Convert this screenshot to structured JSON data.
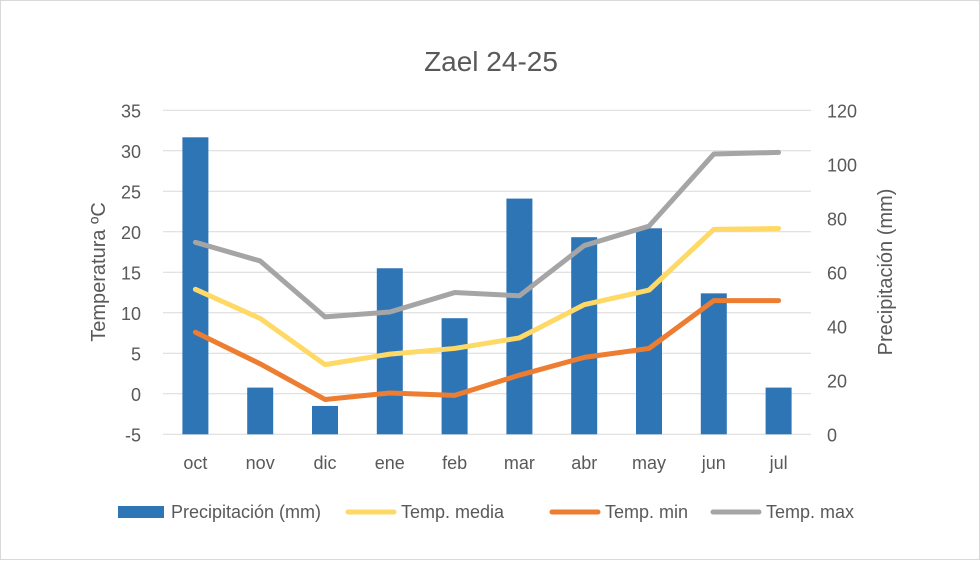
{
  "chart_data": {
    "type": "bar+line",
    "title": "Zael 24-25",
    "categories": [
      "oct",
      "nov",
      "dic",
      "ene",
      "feb",
      "mar",
      "abr",
      "may",
      "jun",
      "jul"
    ],
    "y_left": {
      "label": "Temperatura ºC",
      "range": [
        -5,
        35
      ],
      "ticks": [
        -5,
        0,
        5,
        10,
        15,
        20,
        25,
        30,
        35
      ]
    },
    "y_right": {
      "label": "Precipitación (mm)",
      "range": [
        0,
        120
      ],
      "ticks": [
        0,
        20,
        40,
        60,
        80,
        100,
        120
      ]
    },
    "grid": true,
    "legend_position": "bottom",
    "series": [
      {
        "name": "Precipitación (mm)",
        "type": "bar",
        "axis": "right",
        "color": "#2E75B6",
        "values": [
          110,
          17.3,
          10.5,
          61.5,
          43,
          87.3,
          73,
          76.3,
          52.2,
          17.3
        ]
      },
      {
        "name": "Temp. media",
        "type": "line",
        "axis": "left",
        "color": "#FFD966",
        "values": [
          12.9,
          9.3,
          3.6,
          4.9,
          5.6,
          6.9,
          11.0,
          12.8,
          20.3,
          20.4
        ]
      },
      {
        "name": "Temp. min",
        "type": "line",
        "axis": "left",
        "color": "#ED7D31",
        "values": [
          7.6,
          3.7,
          -0.7,
          0.1,
          -0.2,
          2.3,
          4.5,
          5.6,
          11.5,
          11.5
        ]
      },
      {
        "name": "Temp. max",
        "type": "line",
        "axis": "left",
        "color": "#A5A5A5",
        "values": [
          18.7,
          16.4,
          9.5,
          10.1,
          12.5,
          12.1,
          18.3,
          20.7,
          29.6,
          29.8
        ]
      }
    ]
  }
}
